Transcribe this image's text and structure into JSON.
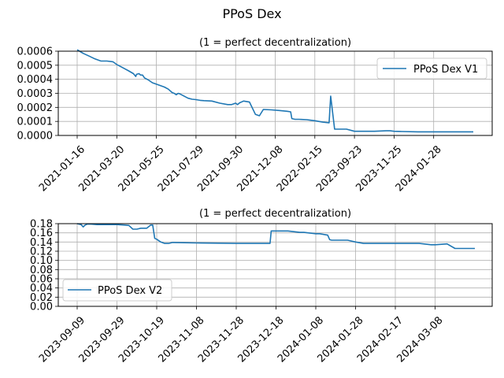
{
  "figure_title": "PPoS Dex",
  "colors": {
    "line": "#1f77b4",
    "grid": "#b0b0b0",
    "axis": "#000000"
  },
  "chart_data": [
    {
      "type": "line",
      "title": "(1 = perfect decentralization)",
      "legend": {
        "position": "upper right"
      },
      "grid": true,
      "x_tick_labels": [
        "2021-01-16",
        "2021-03-20",
        "2021-05-25",
        "2021-07-29",
        "2021-09-30",
        "2021-12-08",
        "2022-02-15",
        "2023-09-23",
        "2023-11-25",
        "2024-01-28"
      ],
      "y_tick_labels": [
        "0.0000",
        "0.0001",
        "0.0002",
        "0.0003",
        "0.0004",
        "0.0005",
        "0.0006"
      ],
      "ylim": [
        0,
        0.0006
      ],
      "series": [
        {
          "name": "PPoS Dex V1",
          "x_index": [
            0,
            0.15,
            0.3,
            0.45,
            0.6,
            0.75,
            0.9,
            1.0,
            1.1,
            1.2,
            1.3,
            1.42,
            1.48,
            1.5,
            1.56,
            1.6,
            1.65,
            1.7,
            1.8,
            1.9,
            2.0,
            2.2,
            2.3,
            2.4,
            2.45,
            2.5,
            2.55,
            2.6,
            2.7,
            2.8,
            2.9,
            3.0,
            3.1,
            3.2,
            3.4,
            3.6,
            3.8,
            3.85,
            3.9,
            4.0,
            4.05,
            4.1,
            4.2,
            4.35,
            4.5,
            4.55,
            4.6,
            4.7,
            4.9,
            5.1,
            5.2,
            5.3,
            5.39,
            5.42,
            5.5,
            5.6,
            5.8,
            5.9,
            6.0,
            6.1,
            6.2,
            6.36,
            6.4,
            6.5,
            6.6,
            6.7,
            6.8,
            7.0,
            7.2,
            7.5,
            7.8,
            7.9,
            8.0,
            8.2,
            8.6,
            9.0,
            9.2,
            9.6,
            10.0
          ],
          "values": [
            0.00061,
            0.000585,
            0.000565,
            0.000545,
            0.00053,
            0.00053,
            0.000525,
            0.000505,
            0.00049,
            0.000475,
            0.00046,
            0.00044,
            0.00042,
            0.000435,
            0.00044,
            0.00043,
            0.00043,
            0.00041,
            0.000395,
            0.000375,
            0.000365,
            0.000345,
            0.00033,
            0.000305,
            0.0003,
            0.00029,
            0.0003,
            0.000295,
            0.00028,
            0.000265,
            0.000258,
            0.000255,
            0.00025,
            0.000248,
            0.000245,
            0.00023,
            0.00022,
            0.00022,
            0.00022,
            0.00023,
            0.00022,
            0.000232,
            0.000245,
            0.000238,
            0.00015,
            0.000145,
            0.00014,
            0.000185,
            0.000182,
            0.000178,
            0.000175,
            0.000172,
            0.000168,
            0.00012,
            0.000115,
            0.000115,
            0.000112,
            0.000108,
            0.000105,
            0.0001,
            9.5e-05,
            9e-05,
            0.00028,
            4.5e-05,
            4.5e-05,
            4.5e-05,
            4.5e-05,
            3e-05,
            3e-05,
            3e-05,
            3.3e-05,
            3.3e-05,
            3e-05,
            2.8e-05,
            2.6e-05,
            2.6e-05,
            2.6e-05,
            2.6e-05,
            2.6e-05
          ]
        }
      ]
    },
    {
      "type": "line",
      "title": "(1 = perfect decentralization)",
      "legend": {
        "position": "lower left"
      },
      "grid": true,
      "x_tick_labels": [
        "2023-09-09",
        "2023-09-29",
        "2023-10-19",
        "2023-11-08",
        "2023-11-28",
        "2023-12-18",
        "2024-01-08",
        "2024-01-28",
        "2024-02-17",
        "2024-03-08"
      ],
      "y_tick_labels": [
        "0.00",
        "0.02",
        "0.04",
        "0.06",
        "0.08",
        "0.10",
        "0.12",
        "0.14",
        "0.16",
        "0.18"
      ],
      "ylim": [
        0,
        0.18
      ],
      "series": [
        {
          "name": "PPoS Dex V2",
          "x_index": [
            0,
            0.1,
            0.15,
            0.2,
            0.25,
            0.35,
            0.5,
            0.8,
            1.0,
            1.2,
            1.3,
            1.4,
            1.5,
            1.6,
            1.75,
            1.85,
            1.87,
            1.9,
            1.95,
            2.0,
            2.1,
            2.2,
            2.3,
            2.4,
            3.0,
            4.0,
            4.5,
            4.85,
            4.88,
            5.1,
            5.3,
            5.6,
            5.7,
            6.0,
            6.1,
            6.3,
            6.35,
            6.4,
            6.6,
            6.8,
            7.0,
            7.2,
            7.5,
            8.0,
            8.6,
            8.9,
            9.0,
            9.3,
            9.5,
            10.0
          ],
          "values": [
            0.18,
            0.178,
            0.173,
            0.177,
            0.179,
            0.179,
            0.178,
            0.178,
            0.178,
            0.177,
            0.176,
            0.168,
            0.168,
            0.17,
            0.17,
            0.177,
            0.177,
            0.177,
            0.148,
            0.146,
            0.14,
            0.137,
            0.137,
            0.139,
            0.138,
            0.137,
            0.137,
            0.137,
            0.164,
            0.164,
            0.164,
            0.161,
            0.161,
            0.158,
            0.158,
            0.155,
            0.145,
            0.144,
            0.144,
            0.144,
            0.14,
            0.137,
            0.137,
            0.137,
            0.137,
            0.134,
            0.134,
            0.136,
            0.126,
            0.126
          ]
        }
      ]
    }
  ]
}
